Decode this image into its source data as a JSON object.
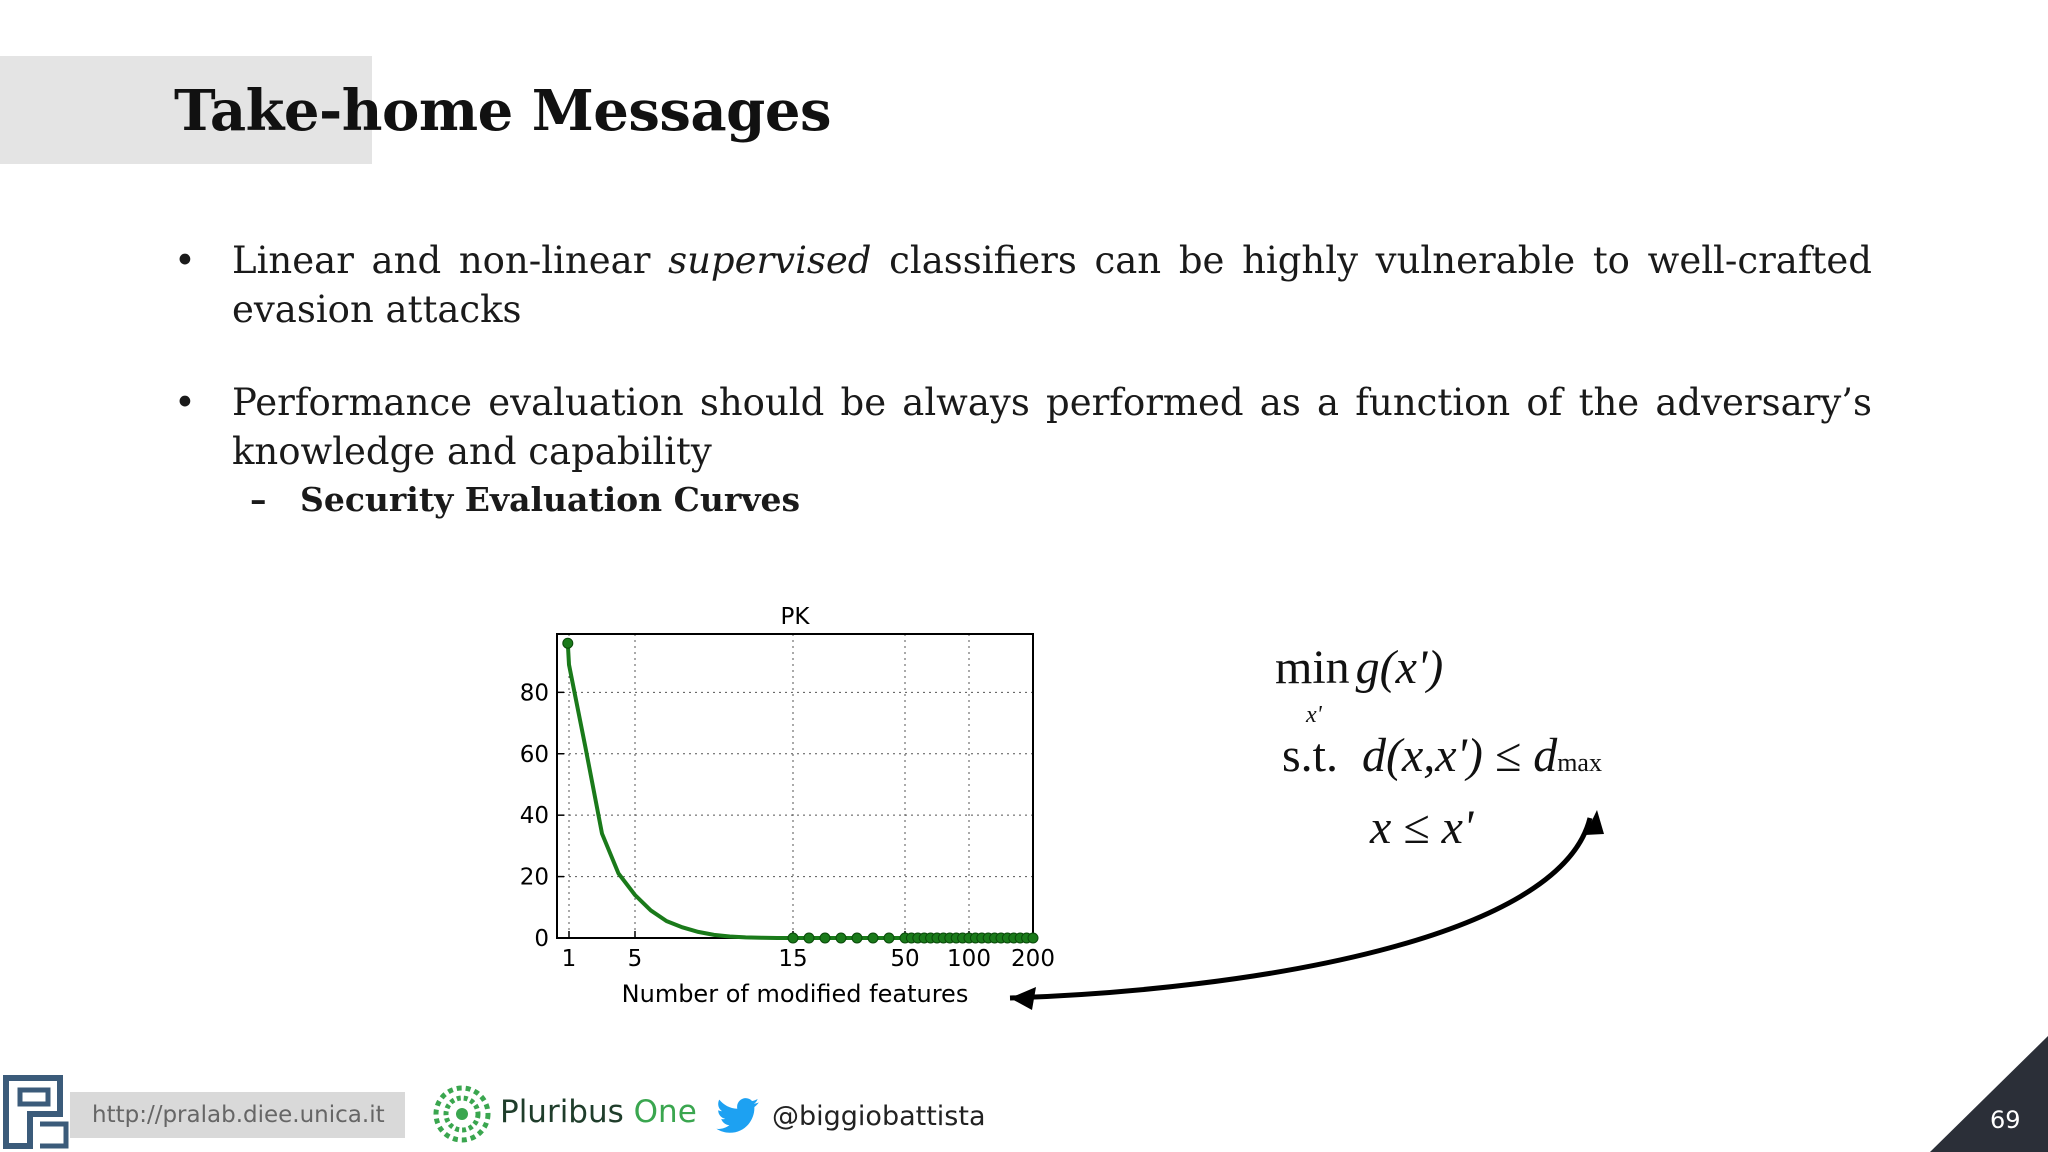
{
  "slide": {
    "title": "Take-home Messages",
    "page_number": "69"
  },
  "bullets": [
    {
      "pre": "Linear and non-linear ",
      "emph": "supervised",
      "post": " classifiers can be highly vulnerable to well-crafted evasion attacks"
    },
    {
      "text": "Performance evaluation should be always performed as a function of the adversary’s knowledge and capability"
    }
  ],
  "sub_bullet": {
    "dash": "–",
    "text": "Security Evaluation Curves"
  },
  "bullet_symbol": "•",
  "formula": {
    "min": "min",
    "min_sub": "x'",
    "objective": "g(x')",
    "st": "s.t.",
    "constraint1": "d(x,x') ≤ d",
    "constraint1_sub": "max",
    "constraint2": "x ≤ x'"
  },
  "chart_data": {
    "type": "line",
    "title": "PK",
    "xlabel": "Number of modified features",
    "ylabel": "",
    "x_tick_labels": [
      "1",
      "5",
      "15",
      "50",
      "100",
      "200"
    ],
    "y_tick_labels": [
      "0",
      "20",
      "40",
      "60",
      "80"
    ],
    "ylim": [
      0,
      99
    ],
    "grid": true,
    "series": [
      {
        "color": "#1a7a1a",
        "points": [
          [
            0,
            96
          ],
          [
            1,
            89
          ],
          [
            2,
            62
          ],
          [
            3,
            34
          ],
          [
            4,
            21
          ],
          [
            5,
            14
          ],
          [
            6,
            9
          ],
          [
            7,
            5.5
          ],
          [
            8,
            3.5
          ],
          [
            9,
            2
          ],
          [
            10,
            1
          ],
          [
            11,
            0.5
          ],
          [
            12,
            0.2
          ],
          [
            13,
            0.1
          ],
          [
            14,
            0
          ],
          [
            15,
            0
          ],
          [
            20,
            0
          ],
          [
            25,
            0
          ],
          [
            30,
            0
          ],
          [
            35,
            0
          ],
          [
            40,
            0
          ],
          [
            45,
            0
          ],
          [
            50,
            0
          ],
          [
            55,
            0
          ],
          [
            60,
            0
          ],
          [
            65,
            0
          ],
          [
            70,
            0
          ],
          [
            75,
            0
          ],
          [
            80,
            0
          ],
          [
            85,
            0
          ],
          [
            90,
            0
          ],
          [
            95,
            0
          ],
          [
            100,
            0
          ],
          [
            110,
            0
          ],
          [
            120,
            0
          ],
          [
            130,
            0
          ],
          [
            140,
            0
          ],
          [
            150,
            0
          ],
          [
            160,
            0
          ],
          [
            170,
            0
          ],
          [
            180,
            0
          ],
          [
            190,
            0
          ],
          [
            200,
            0
          ]
        ],
        "marker_x": [
          0,
          15,
          20,
          25,
          30,
          35,
          40,
          45,
          50,
          55,
          60,
          65,
          70,
          75,
          80,
          85,
          90,
          95,
          100,
          110,
          120,
          130,
          140,
          150,
          160,
          170,
          180,
          190,
          200
        ]
      }
    ]
  },
  "footer": {
    "url": "http://pralab.diee.unica.it",
    "brand_part1": "Pluribus ",
    "brand_part2": "One",
    "twitter_handle": "@biggiobattista"
  },
  "colors": {
    "title_band": "#e4e4e4",
    "curve": "#1a7a1a",
    "corner": "#2b2f38",
    "brand_green": "#3aa64f"
  }
}
